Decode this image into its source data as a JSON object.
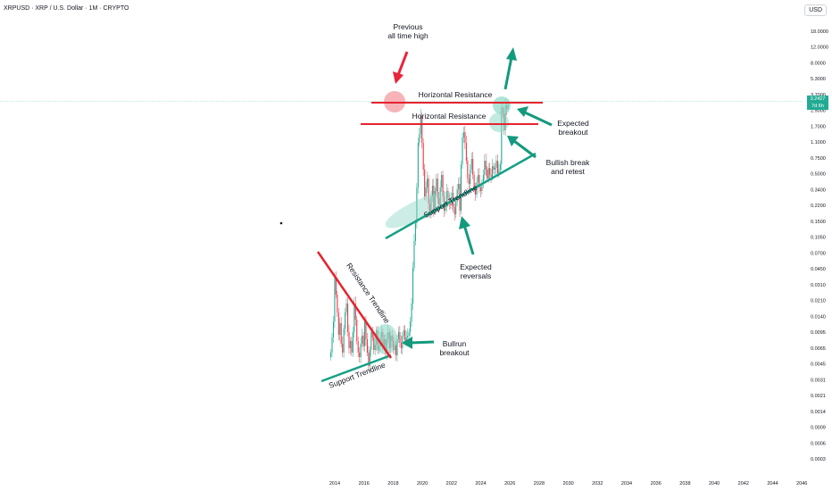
{
  "header": {
    "title": "XRPUSD · XRP / U.S. Dollar · 1M · CRYPTO",
    "currency": "USD"
  },
  "price_tag": {
    "value": "3.2427",
    "countdown": "7d 6h"
  },
  "colors": {
    "up": "#22ab94",
    "down": "#f23645",
    "resistance": "#e6232f",
    "support": "#16a085",
    "highlight_red": "#f4a7ad",
    "highlight_green": "#8fd8c8",
    "arrow_green": "#139a7c",
    "arrow_red": "#e8253a"
  },
  "chart_data": {
    "type": "candlestick",
    "scale": "log",
    "y_ticks": [
      "18.0000",
      "12.0000",
      "8.0000",
      "5.3000",
      "3.7000",
      "2.5000",
      "1.7000",
      "1.1000",
      "0.7500",
      "0.5000",
      "0.3400",
      "0.2200",
      "0.1500",
      "0.1050",
      "0.0700",
      "0.0450",
      "0.0310",
      "0.0210",
      "0.0140",
      "0.0095",
      "0.0065",
      "0.0045",
      "0.0031",
      "0.0021",
      "0.0014",
      "0.0009",
      "0.0006",
      "0.0003"
    ],
    "x_ticks": [
      "2014",
      "2016",
      "2018",
      "2020",
      "2022",
      "2024",
      "2026",
      "2028",
      "2030",
      "2032",
      "2034",
      "2036",
      "2038",
      "2040",
      "2042",
      "2044",
      "2046"
    ],
    "annotations": [
      {
        "id": "prev-ath",
        "text": [
          "Previous",
          "all time high"
        ]
      },
      {
        "id": "hres-top",
        "text": [
          "Horizontal Resistance"
        ]
      },
      {
        "id": "hres-low",
        "text": [
          "Horizontal Resistance"
        ]
      },
      {
        "id": "exp-break",
        "text": [
          "Expected",
          "breakout"
        ]
      },
      {
        "id": "bull-retest",
        "text": [
          "Bullish break",
          "and retest"
        ]
      },
      {
        "id": "support-upper",
        "text": [
          "Support Trendline"
        ]
      },
      {
        "id": "exp-rev",
        "text": [
          "Expected",
          "reversals"
        ]
      },
      {
        "id": "resistance-tl",
        "text": [
          "Resistance Trendline"
        ]
      },
      {
        "id": "bullrun",
        "text": [
          "Bullrun",
          "breakout"
        ]
      },
      {
        "id": "support-lower",
        "text": [
          "Support Trendline"
        ]
      }
    ],
    "levels": {
      "ath": 3.3,
      "horizontal_resistance_top": 3.0,
      "horizontal_resistance_low": 1.9,
      "current": 3.2427
    }
  }
}
